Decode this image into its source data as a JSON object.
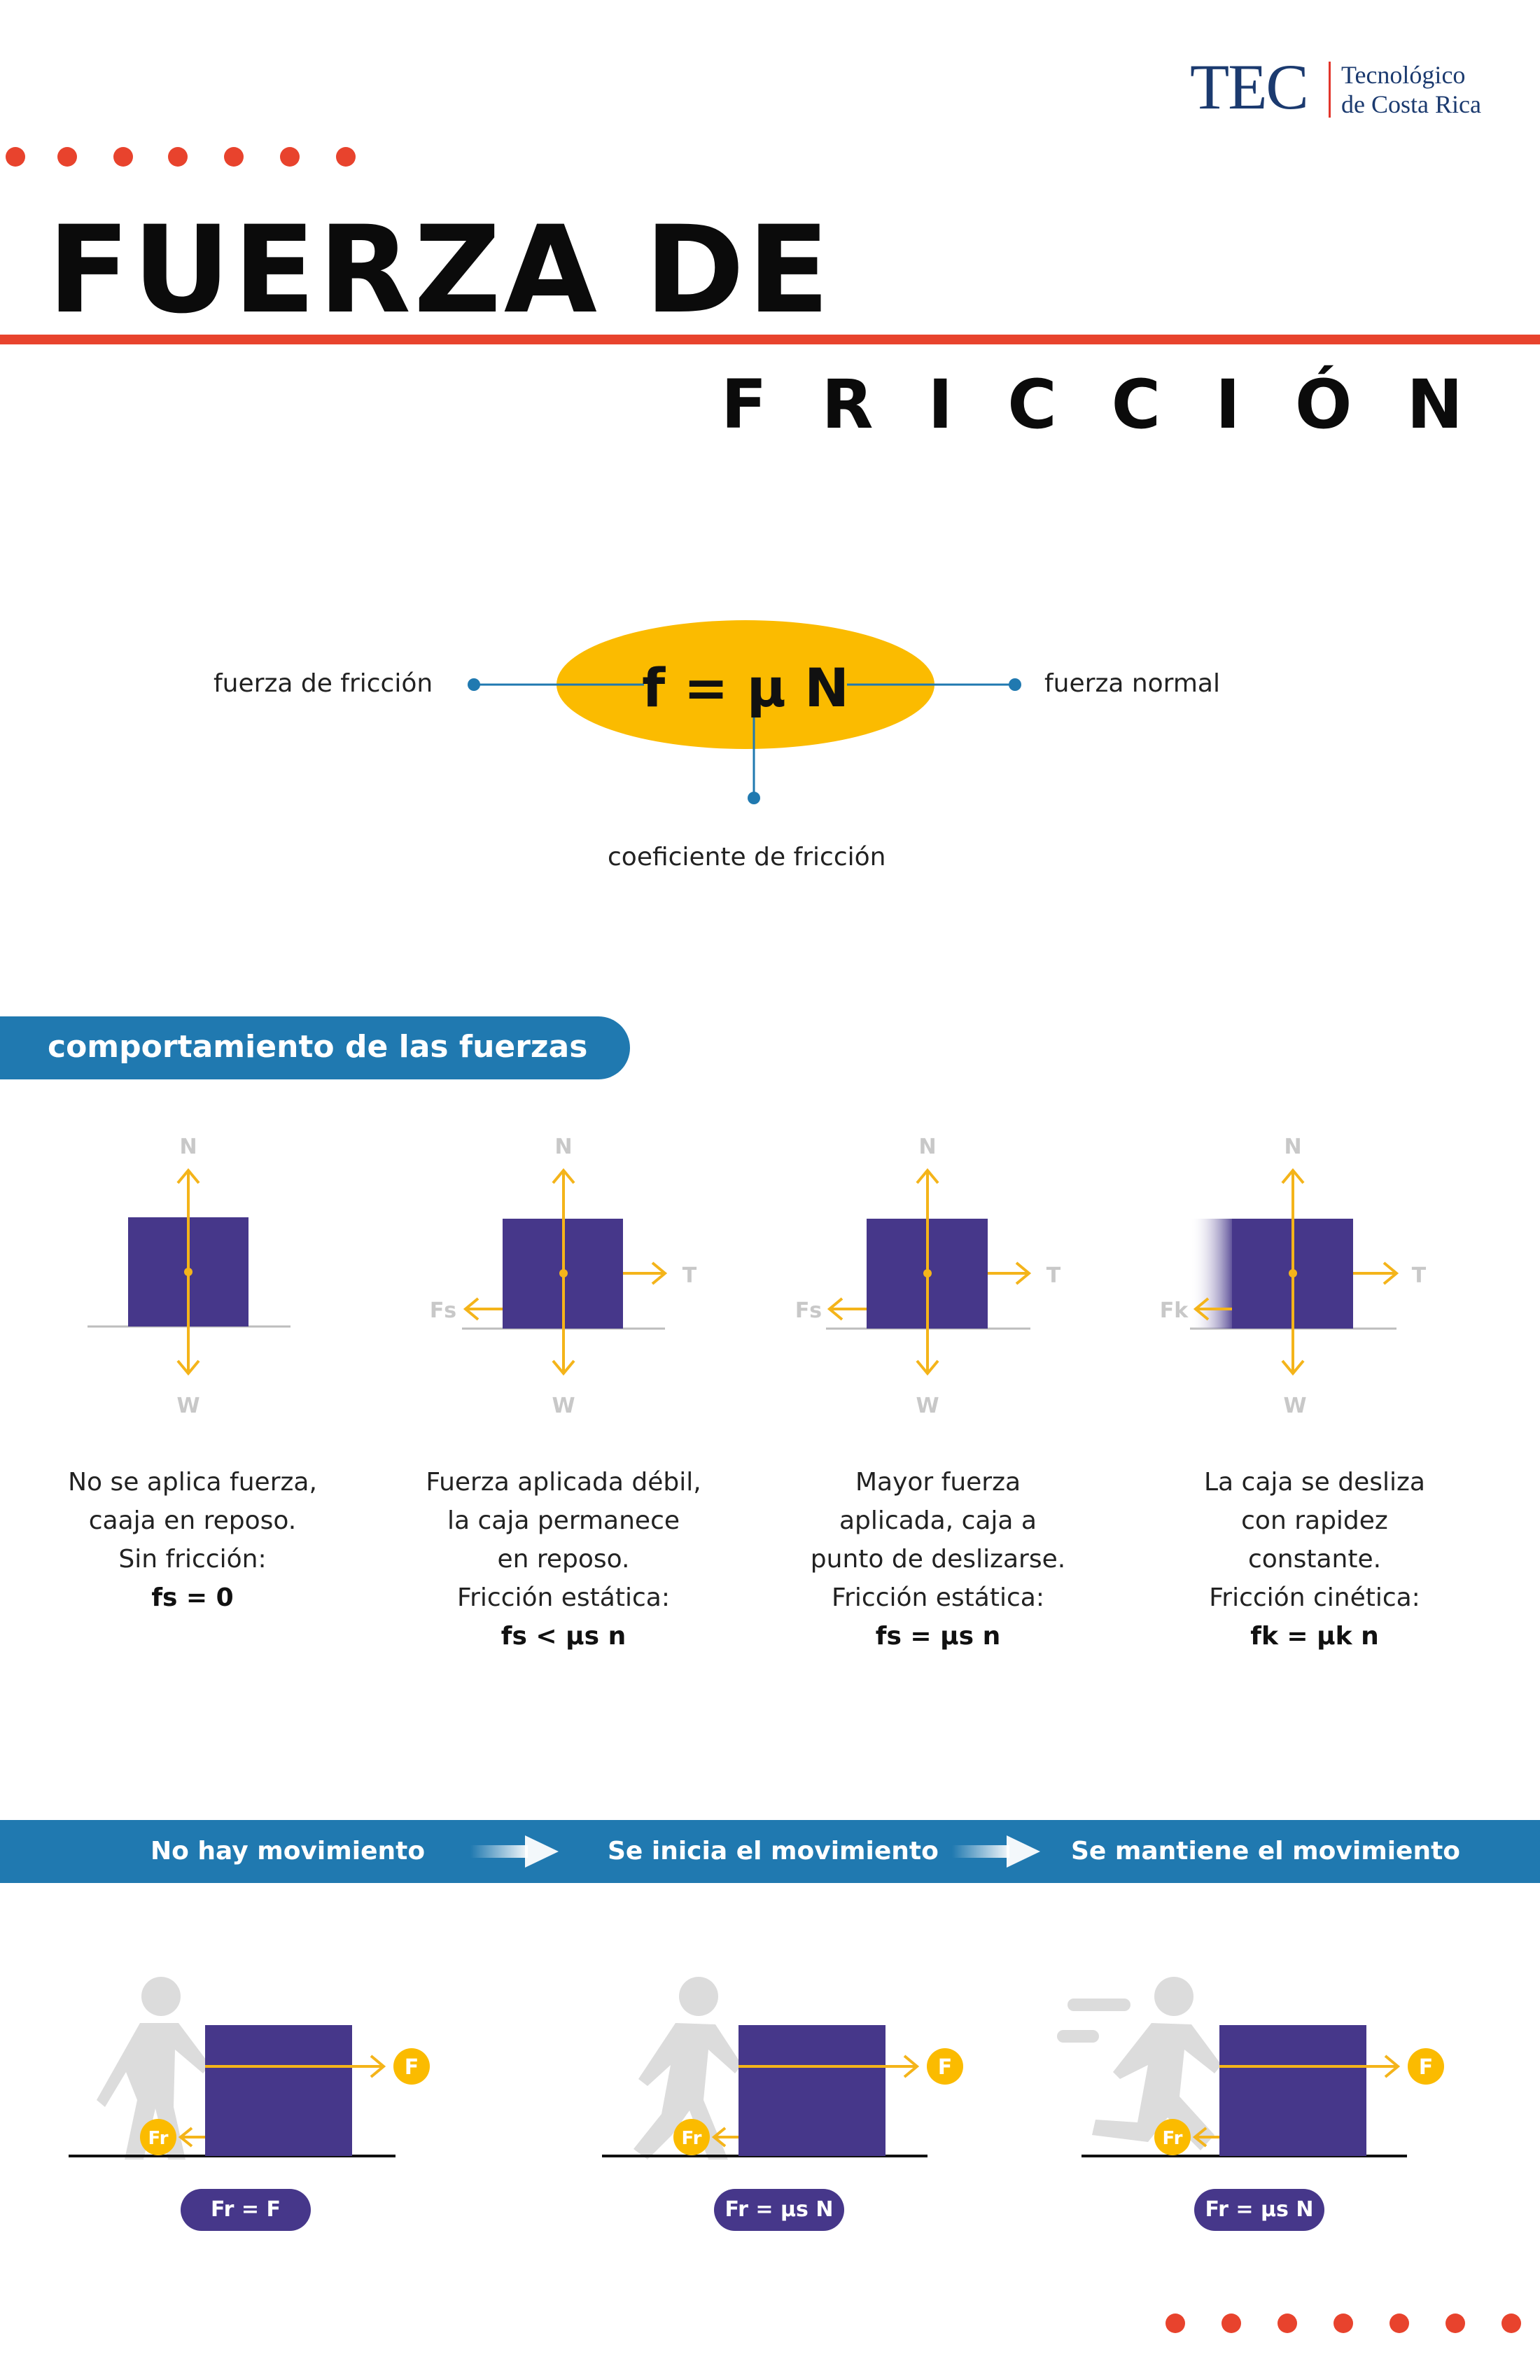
{
  "logo": {
    "mark": "TEC",
    "line1": "Tecnológico",
    "line2": "de Costa Rica"
  },
  "title": {
    "line1": "FUERZA DE",
    "line2": "FRICCIÓN"
  },
  "formula": {
    "text": "f = μ N",
    "label_left": "fuerza de fricción",
    "label_right": "fuerza normal",
    "label_bottom": "coeficiente de fricción"
  },
  "section": {
    "title": "comportamiento de las fuerzas"
  },
  "diagram_labels": {
    "normal": "N",
    "weight": "W",
    "tension": "T",
    "fs": "Fs",
    "fk": "Fk"
  },
  "cases": [
    {
      "lines": [
        "No se aplica fuerza,",
        "caaja en reposo.",
        "Sin fricción:"
      ],
      "equation": "fs = 0"
    },
    {
      "lines": [
        "Fuerza aplicada débil,",
        "la caja permanece",
        "en reposo.",
        "Fricción estática:"
      ],
      "equation": "fs < μs n"
    },
    {
      "lines": [
        "Mayor fuerza",
        "aplicada, caja a",
        "punto de deslizarse.",
        "Fricción estática:"
      ],
      "equation": "fs = μs n"
    },
    {
      "lines": [
        "La caja se desliza",
        "con rapidez",
        "constante.",
        "Fricción cinética:"
      ],
      "equation": "fk = μk n"
    }
  ],
  "banner": {
    "steps": [
      "No hay movimiento",
      "Se inicia el movimiento",
      "Se mantiene el movimiento"
    ]
  },
  "scenes": {
    "force_label": "F",
    "friction_label": "Fr",
    "equations": [
      "Fr = F",
      "Fr = μs N",
      "Fr = μs N"
    ]
  },
  "colors": {
    "accent_red": "#e8432d",
    "blue": "#2079b0",
    "box": "#46378a",
    "arrow": "#f4b41a",
    "ellipse": "#fbbb00",
    "navy": "#1b3a6f"
  }
}
